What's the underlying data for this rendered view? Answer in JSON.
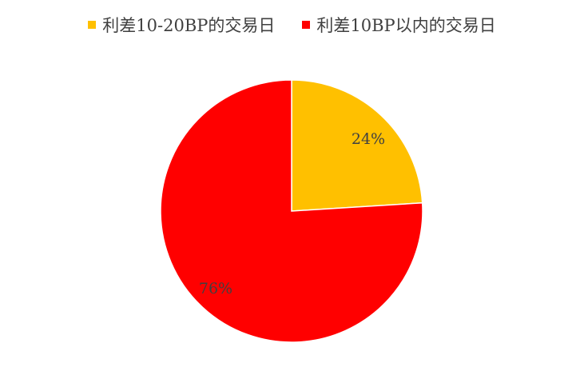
{
  "chart_data": {
    "type": "pie",
    "categories": [
      "利差10-20BP的交易日",
      "利差10BP以内的交易日"
    ],
    "values": [
      24,
      76
    ],
    "data_labels": [
      "24%",
      "76%"
    ],
    "colors": [
      "#FFC000",
      "#FF0000"
    ],
    "legend_position": "top",
    "start_angle_deg": 0,
    "direction": "clockwise"
  }
}
